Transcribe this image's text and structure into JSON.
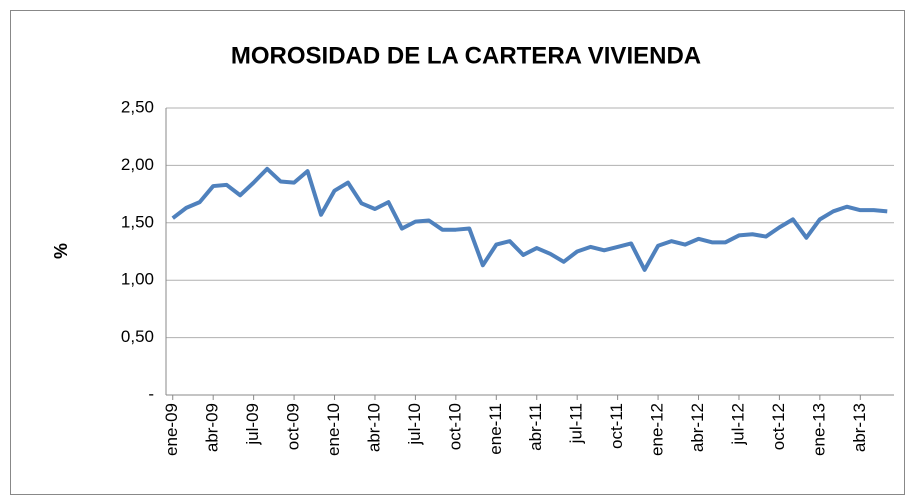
{
  "chart_data": {
    "type": "line",
    "title": "MOROSIDAD DE LA CARTERA VIVIENDA",
    "y_label": "%",
    "categories": [
      "ene-09",
      null,
      null,
      "abr-09",
      null,
      null,
      "jul-09",
      null,
      null,
      "oct-09",
      null,
      null,
      "ene-10",
      null,
      null,
      "abr-10",
      null,
      null,
      "jul-10",
      null,
      null,
      "oct-10",
      null,
      null,
      "ene-11",
      null,
      null,
      "abr-11",
      null,
      null,
      "jul-11",
      null,
      null,
      "oct-11",
      null,
      null,
      "ene-12",
      null,
      null,
      "abr-12",
      null,
      null,
      "jul-12",
      null,
      null,
      "oct-12",
      null,
      null,
      "ene-13",
      null,
      null,
      "abr-13",
      null,
      null
    ],
    "series": [
      {
        "name": "Morosidad",
        "color": "#4f81bd",
        "values": [
          1.54,
          1.63,
          1.68,
          1.82,
          1.83,
          1.74,
          1.85,
          1.97,
          1.86,
          1.85,
          1.95,
          1.57,
          1.78,
          1.85,
          1.67,
          1.62,
          1.68,
          1.45,
          1.51,
          1.52,
          1.44,
          1.44,
          1.45,
          1.13,
          1.31,
          1.34,
          1.22,
          1.28,
          1.23,
          1.16,
          1.25,
          1.29,
          1.26,
          1.29,
          1.32,
          1.09,
          1.3,
          1.34,
          1.31,
          1.36,
          1.33,
          1.33,
          1.39,
          1.4,
          1.38,
          1.46,
          1.53,
          1.37,
          1.53,
          1.6,
          1.64,
          1.61,
          1.61,
          1.6
        ]
      }
    ],
    "ylim": [
      0,
      2.5
    ],
    "yticks": [
      {
        "value": 0,
        "label": "-"
      },
      {
        "value": 0.5,
        "label": "0,50"
      },
      {
        "value": 1,
        "label": "1,00"
      },
      {
        "value": 1.5,
        "label": "1,50"
      },
      {
        "value": 2,
        "label": "2,00"
      },
      {
        "value": 2.5,
        "label": "2,50"
      }
    ],
    "grid": true
  }
}
